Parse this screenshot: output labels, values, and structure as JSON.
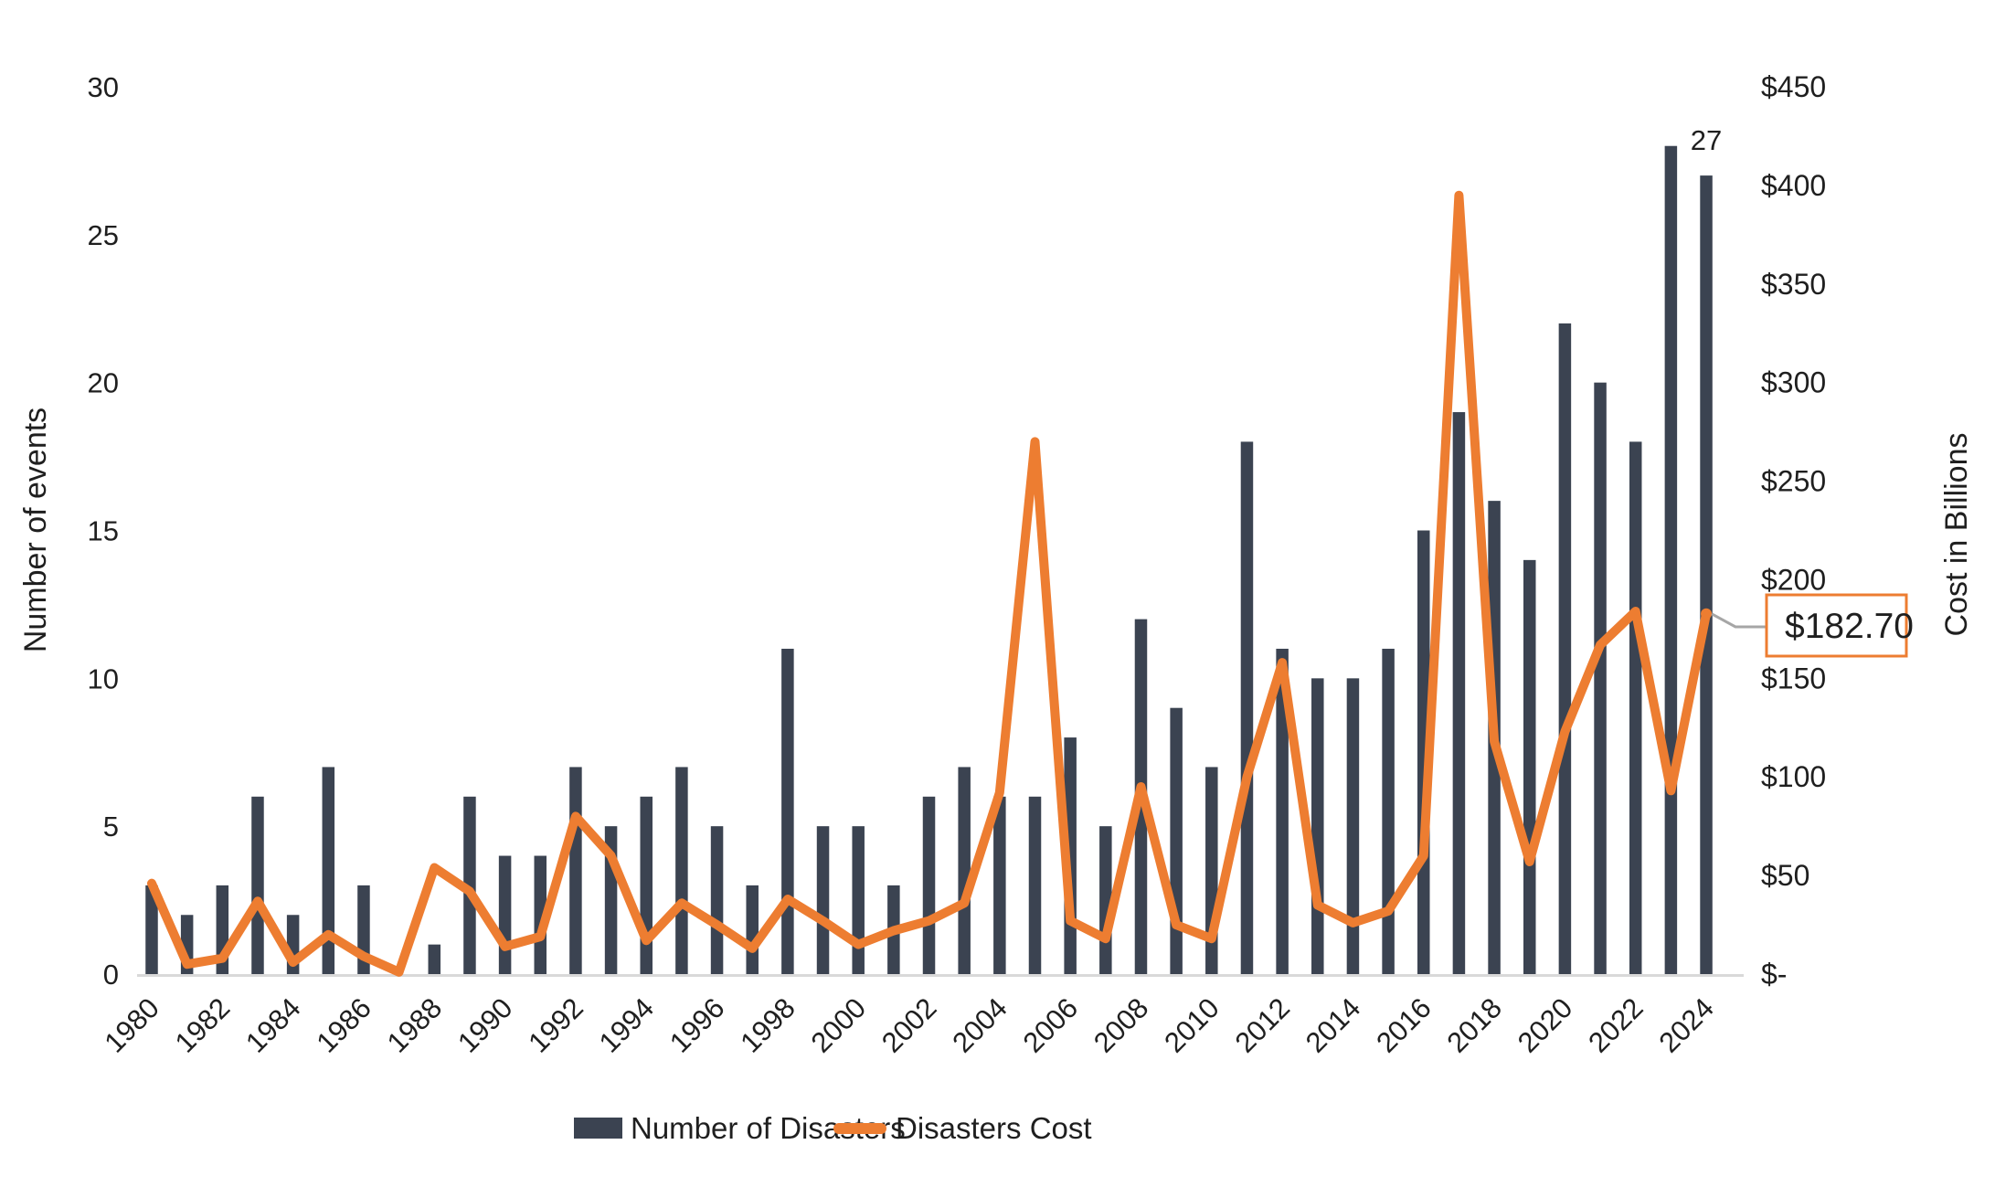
{
  "colors": {
    "bar": "#3B4351",
    "line": "#ED7D31",
    "axis_line": "#D9D9D9",
    "connector": "#A6A6A6",
    "callout_border": "#ED7D31",
    "callout_fill": "#FFFFFF",
    "text": "#1F1F1F"
  },
  "annotations": {
    "last_bar_label": "27",
    "callout_text": "$182.70"
  },
  "legend": {
    "items": [
      {
        "label": "Number of Disasters",
        "swatch": "bar"
      },
      {
        "label": "Disasters Cost",
        "swatch": "line"
      }
    ]
  },
  "chart_data": {
    "type": "bar+line combo",
    "title": "",
    "grid": false,
    "legend_position": "bottom",
    "categories": [
      1980,
      1981,
      1982,
      1983,
      1984,
      1985,
      1986,
      1987,
      1988,
      1989,
      1990,
      1991,
      1992,
      1993,
      1994,
      1995,
      1996,
      1997,
      1998,
      1999,
      2000,
      2001,
      2002,
      2003,
      2004,
      2005,
      2006,
      2007,
      2008,
      2009,
      2010,
      2011,
      2012,
      2013,
      2014,
      2015,
      2016,
      2017,
      2018,
      2019,
      2020,
      2021,
      2022,
      2023,
      2024
    ],
    "series": [
      {
        "name": "Number of Disasters",
        "type": "bar",
        "axis": "left",
        "values": [
          3,
          2,
          3,
          6,
          2,
          7,
          3,
          0,
          1,
          6,
          4,
          4,
          7,
          5,
          6,
          7,
          5,
          3,
          11,
          5,
          5,
          3,
          6,
          7,
          6,
          6,
          8,
          5,
          12,
          9,
          7,
          18,
          11,
          10,
          10,
          11,
          15,
          19,
          16,
          14,
          22,
          20,
          18,
          28,
          27
        ]
      },
      {
        "name": "Disasters Cost",
        "type": "line",
        "axis": "right",
        "values": [
          46,
          5,
          8,
          37,
          6,
          20,
          9,
          1,
          54,
          42,
          14,
          19,
          80,
          60,
          17,
          36,
          25,
          13,
          38,
          27,
          15,
          22,
          27,
          36,
          92,
          270,
          27,
          18,
          95,
          25,
          18,
          100,
          158,
          35,
          26,
          32,
          60,
          395,
          118,
          57,
          123,
          167,
          184,
          93,
          182.7
        ]
      }
    ],
    "left_axis": {
      "title": "Number of events",
      "min": 0,
      "max": 30,
      "tick_step": 5,
      "tick_labels": [
        "0",
        "5",
        "10",
        "15",
        "20",
        "25",
        "30"
      ]
    },
    "right_axis": {
      "title": "Cost in Billions",
      "min": 0,
      "max": 450,
      "tick_step": 50,
      "tick_labels": [
        "$-",
        "$50",
        "$100",
        "$150",
        "$200",
        "$250",
        "$300",
        "$350",
        "$400",
        "$450"
      ]
    },
    "x_axis": {
      "tick_every": 2,
      "tick_labels": [
        "1980",
        "1982",
        "1984",
        "1986",
        "1988",
        "1990",
        "1992",
        "1994",
        "1996",
        "1998",
        "2000",
        "2002",
        "2004",
        "2006",
        "2008",
        "2010",
        "2012",
        "2014",
        "2016",
        "2018",
        "2020",
        "2022",
        "2024"
      ],
      "label_rotation_deg": -45
    }
  }
}
